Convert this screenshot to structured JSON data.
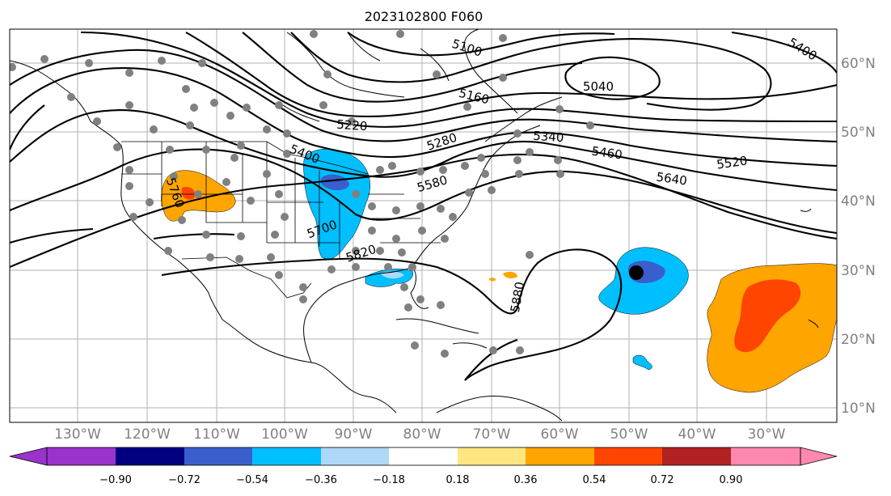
{
  "title": "2023102800 F060",
  "lon_labels": [
    "130°W",
    "120°W",
    "110°W",
    "100°W",
    "90°W",
    "80°W",
    "70°W",
    "60°W",
    "50°W",
    "40°W",
    "30°W"
  ],
  "lat_labels": [
    "60°N",
    "50°N",
    "40°N",
    "30°N",
    "20°N",
    "10°N"
  ],
  "contour_labels": [
    "5100",
    "5040",
    "5160",
    "5220",
    "5280",
    "5340",
    "5400",
    "5400",
    "5460",
    "5520",
    "5580",
    "5640",
    "5700",
    "5760",
    "5820",
    "5880"
  ],
  "colorbar": {
    "ticks": [
      "−0.90",
      "−0.72",
      "−0.54",
      "−0.36",
      "−0.18",
      "0.18",
      "0.36",
      "0.54",
      "0.72",
      "0.90"
    ],
    "colors": [
      "#9933cc",
      "#000080",
      "#3a5fcd",
      "#00bfff",
      "#add8f7",
      "#ffffff",
      "#ffe680",
      "#ffa500",
      "#ff4500",
      "#b22222",
      "#ff88b0"
    ]
  },
  "colors": {
    "height_contour": "#000000",
    "station_dot": "#808080",
    "grid": "#b0b0b0"
  }
}
